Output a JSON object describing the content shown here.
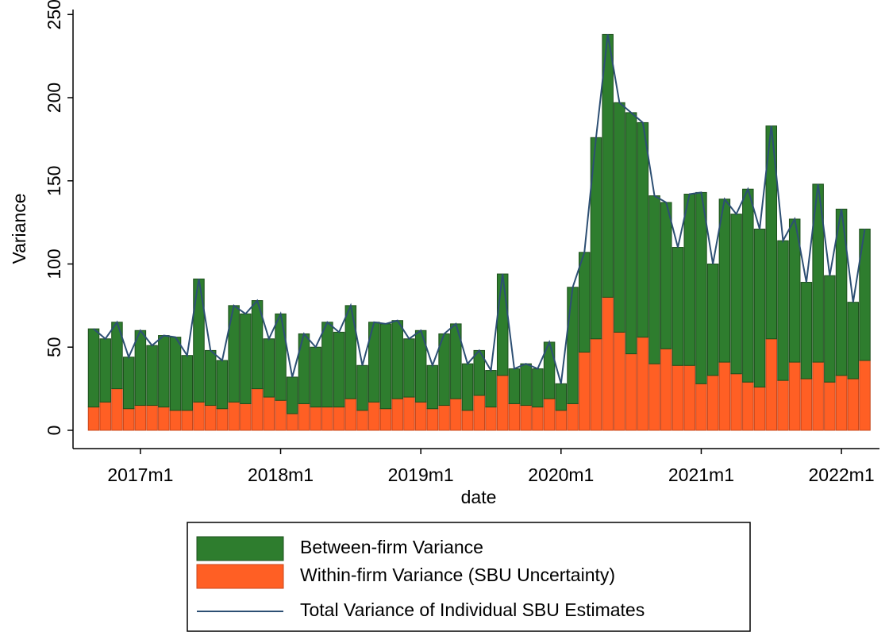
{
  "chart_data": {
    "type": "bar",
    "stacked": true,
    "x_label": "date",
    "y_label": "Variance",
    "categories": [
      null,
      null,
      null,
      null,
      "2017m1",
      null,
      null,
      null,
      null,
      null,
      null,
      null,
      null,
      null,
      null,
      null,
      "2018m1",
      null,
      null,
      null,
      null,
      null,
      null,
      null,
      null,
      null,
      null,
      null,
      "2019m1",
      null,
      null,
      null,
      null,
      null,
      null,
      null,
      null,
      null,
      null,
      null,
      "2020m1",
      null,
      null,
      null,
      null,
      null,
      null,
      null,
      null,
      null,
      null,
      null,
      "2021m1",
      null,
      null,
      null,
      null,
      null,
      null,
      null,
      null,
      null,
      null,
      null,
      "2022m1",
      null,
      null
    ],
    "series": [
      {
        "name": "Between-firm Variance",
        "type": "bar",
        "color": "#2e7d2e",
        "edge": "#1c4f1c",
        "values": [
          47,
          38,
          40,
          31,
          45,
          36,
          43,
          44,
          33,
          74,
          33,
          29,
          58,
          54,
          53,
          35,
          52,
          22,
          42,
          36,
          51,
          45,
          56,
          27,
          48,
          51,
          47,
          35,
          43,
          26,
          43,
          45,
          28,
          27,
          22,
          61,
          21,
          25,
          23,
          34,
          16,
          70,
          60,
          121,
          158,
          138,
          145,
          129,
          101,
          88,
          71,
          103,
          115,
          67,
          98,
          96,
          116,
          95,
          128,
          84,
          86,
          58,
          107,
          64,
          100,
          46,
          79
        ]
      },
      {
        "name": "Within-firm Variance (SBU Uncertainty)",
        "type": "bar",
        "color": "#ff5f24",
        "edge": "#c8461a",
        "values": [
          14,
          17,
          25,
          13,
          15,
          15,
          14,
          12,
          12,
          17,
          15,
          13,
          17,
          16,
          25,
          20,
          18,
          10,
          16,
          14,
          14,
          14,
          19,
          12,
          17,
          13,
          19,
          20,
          17,
          13,
          15,
          19,
          12,
          21,
          14,
          33,
          16,
          15,
          14,
          19,
          12,
          16,
          47,
          55,
          80,
          59,
          46,
          56,
          40,
          49,
          39,
          39,
          28,
          33,
          41,
          34,
          29,
          26,
          55,
          30,
          41,
          31,
          41,
          29,
          33,
          31,
          42
        ]
      },
      {
        "name": "Total Variance of Individual SBU Estimates",
        "type": "line",
        "color": "#2d4f73",
        "values": [
          61,
          55,
          65,
          44,
          60,
          51,
          57,
          56,
          45,
          91,
          48,
          42,
          75,
          70,
          78,
          55,
          70,
          32,
          58,
          50,
          65,
          59,
          75,
          39,
          65,
          64,
          66,
          55,
          60,
          39,
          58,
          64,
          40,
          48,
          36,
          94,
          37,
          40,
          37,
          53,
          28,
          86,
          107,
          176,
          238,
          197,
          191,
          185,
          141,
          137,
          110,
          142,
          143,
          100,
          139,
          130,
          145,
          121,
          183,
          114,
          127,
          89,
          148,
          93,
          133,
          77,
          121
        ]
      }
    ],
    "ylim": [
      -11,
      253
    ],
    "yticks": [
      0,
      50,
      100,
      150,
      200,
      250
    ]
  }
}
